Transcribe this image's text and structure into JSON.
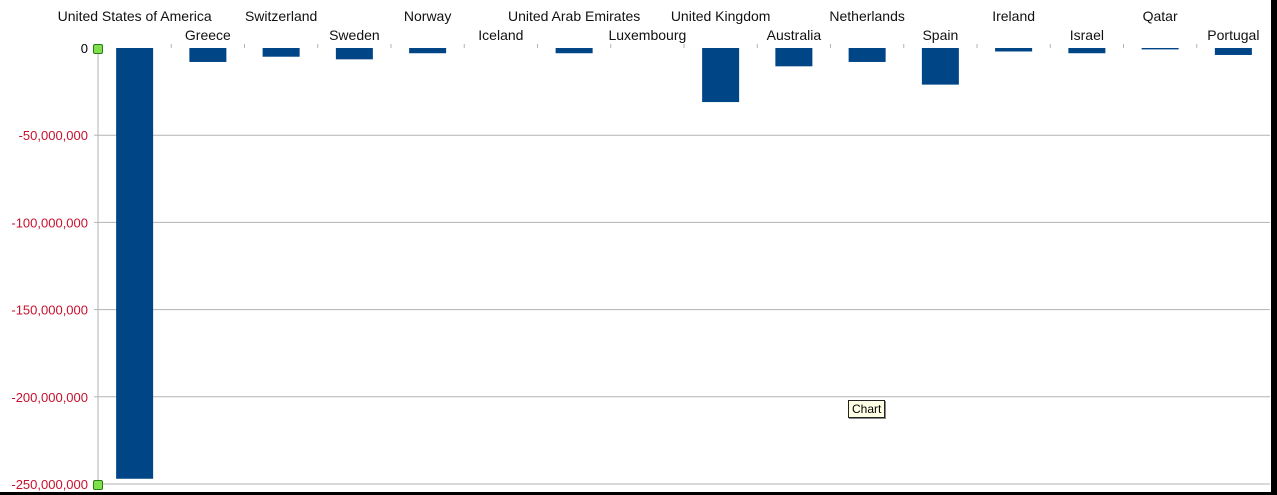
{
  "chart_data": {
    "type": "bar",
    "categories": [
      "United States of America",
      "Greece",
      "Switzerland",
      "Sweden",
      "Norway",
      "Iceland",
      "United Arab Emirates",
      "Luxembourg",
      "United Kingdom",
      "Australia",
      "Netherlands",
      "Spain",
      "Ireland",
      "Israel",
      "Qatar",
      "Portugal"
    ],
    "series": [
      {
        "values": [
          -247000000,
          -8000000,
          -5000000,
          -6500000,
          -3000000,
          0,
          -3000000,
          0,
          -31000000,
          -10500000,
          -8000000,
          -21000000,
          -2000000,
          -3000000,
          -800000,
          -4000000
        ]
      }
    ],
    "ylim": [
      -250000000,
      0
    ],
    "yticks": [
      0,
      -50000000,
      -100000000,
      -150000000,
      -200000000,
      -250000000
    ],
    "ytick_labels": [
      "0",
      "-50,000,000",
      "-100,000,000",
      "-150,000,000",
      "-200,000,000",
      "-250,000,000"
    ],
    "grid": true,
    "legend": "none",
    "bar_color": "#004586",
    "negative_tick_color": "#c8102e",
    "zero_tick_color": "#000000",
    "gridline_color": "#b3b3b3"
  },
  "tooltip": {
    "text": "Chart"
  }
}
